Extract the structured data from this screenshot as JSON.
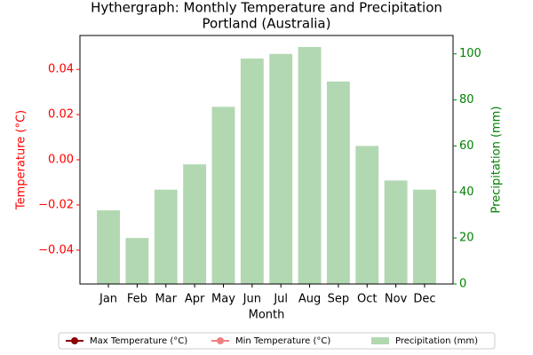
{
  "chart_data": {
    "type": "combo",
    "title": "Hythergraph: Monthly Temperature and Precipitation",
    "subtitle": "Portland (Australia)",
    "x_label": "Month",
    "y_label": "Temperature (°C)",
    "y2_label": "Precipitation (mm)",
    "categories": [
      "Jan",
      "Feb",
      "Mar",
      "Apr",
      "May",
      "Jun",
      "Jul",
      "Aug",
      "Sep",
      "Oct",
      "Nov",
      "Dec"
    ],
    "series": [
      {
        "name": "Max Temperature (°C)",
        "type": "line",
        "color": "#8b0000",
        "axis": "y",
        "values": [
          null,
          null,
          null,
          null,
          null,
          null,
          null,
          null,
          null,
          null,
          null,
          null
        ]
      },
      {
        "name": "Min Temperature (°C)",
        "type": "line",
        "color": "#f08080",
        "axis": "y",
        "values": [
          null,
          null,
          null,
          null,
          null,
          null,
          null,
          null,
          null,
          null,
          null,
          null
        ]
      },
      {
        "name": "Precipitation (mm)",
        "type": "bar",
        "color": "#b2d8b2",
        "axis": "y2",
        "values": [
          32,
          20,
          41,
          52,
          77,
          98,
          100,
          103,
          88,
          60,
          45,
          41
        ]
      }
    ],
    "ylim": [
      -0.055,
      0.055
    ],
    "yticks": [
      {
        "value": -0.04,
        "label": "−0.04"
      },
      {
        "value": -0.02,
        "label": "−0.02"
      },
      {
        "value": 0,
        "label": "0.00"
      },
      {
        "value": 0.02,
        "label": "0.02"
      },
      {
        "value": 0.04,
        "label": "0.04"
      }
    ],
    "y2lim": [
      0,
      108
    ],
    "y2ticks": [
      0,
      20,
      40,
      60,
      80,
      100
    ],
    "y_color": "red",
    "y2_color": "green",
    "legend": "bottom"
  }
}
